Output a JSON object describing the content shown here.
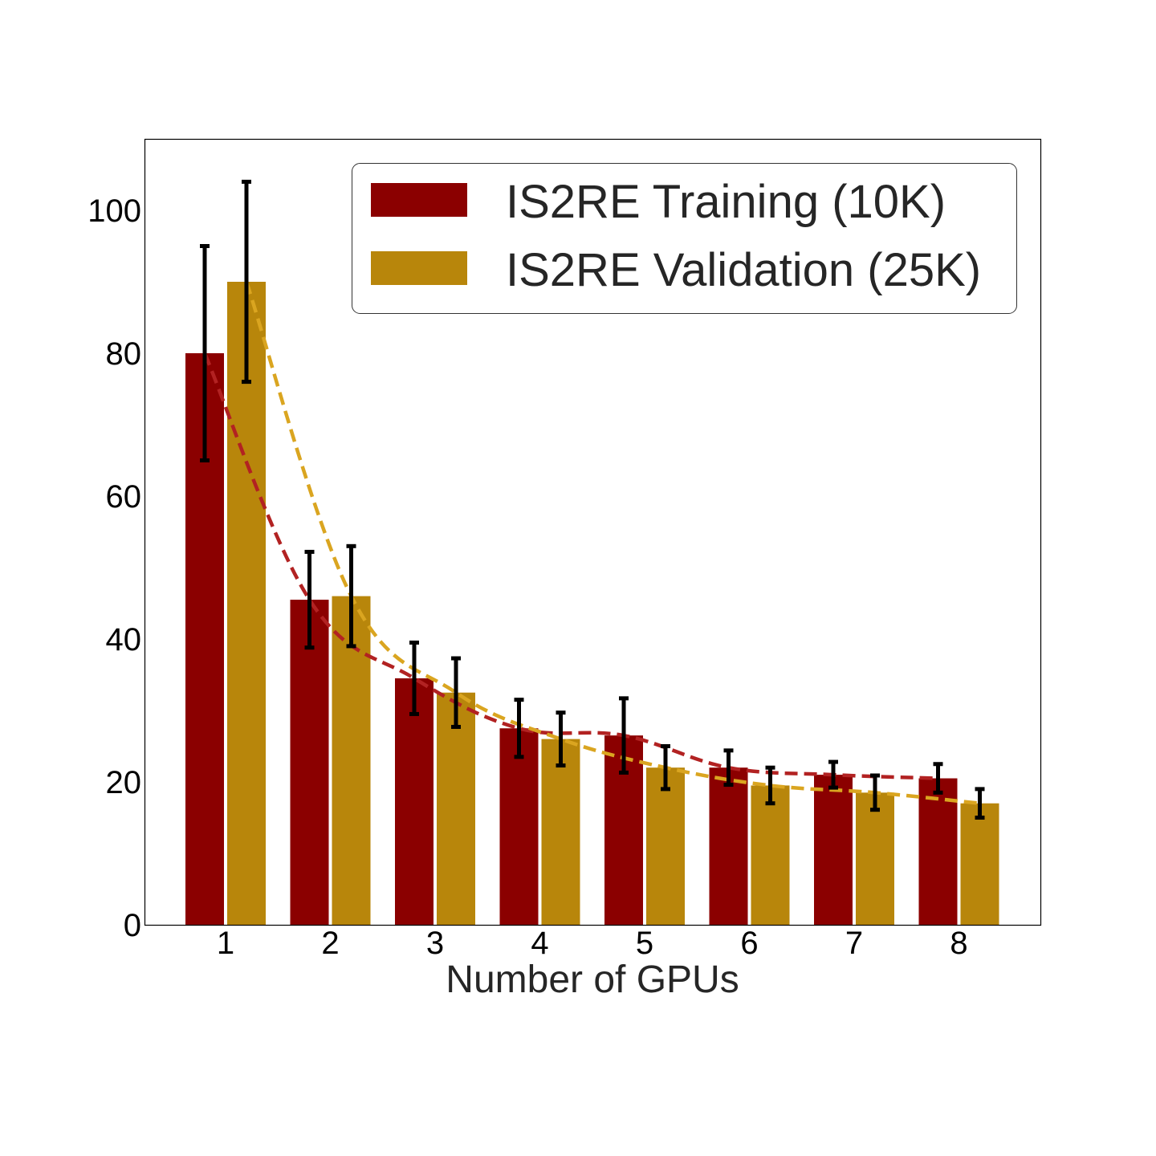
{
  "chart_data": {
    "type": "bar",
    "title": "",
    "xlabel": "Number of GPUs",
    "ylabel": "",
    "categories": [
      "1",
      "2",
      "3",
      "4",
      "5",
      "6",
      "7",
      "8"
    ],
    "ylim": [
      0,
      110
    ],
    "yticks": [
      0,
      20,
      40,
      60,
      80,
      100
    ],
    "grid": false,
    "legend_position": "top-right",
    "series": [
      {
        "name": "IS2RE Training (10K)",
        "color": "#8b0000",
        "trend_color": "#b22222",
        "values": [
          80,
          45.5,
          34.5,
          27.5,
          26.5,
          22,
          21,
          20.5
        ],
        "errors": [
          15,
          6.7,
          5,
          4,
          5.2,
          2.4,
          1.8,
          2
        ]
      },
      {
        "name": "IS2RE Validation (25K)",
        "color": "#b8860b",
        "trend_color": "#daa520",
        "values": [
          90,
          46,
          32.5,
          26,
          22,
          19.5,
          18.5,
          17
        ],
        "errors": [
          14,
          7,
          4.8,
          3.7,
          3,
          2.5,
          2.4,
          2
        ]
      }
    ],
    "trend_lines": true,
    "error_bars": true
  }
}
